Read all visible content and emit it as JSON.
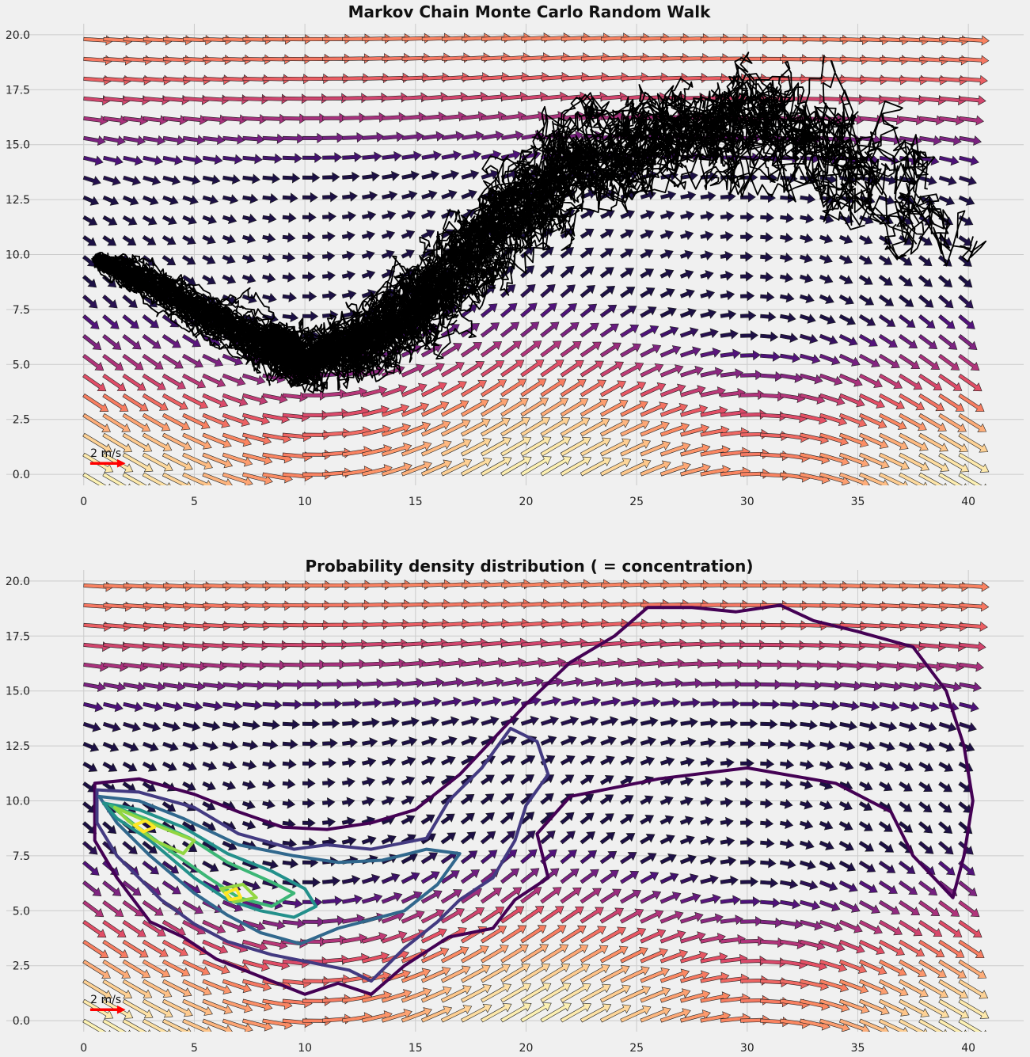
{
  "colors": {
    "background": "#f0f0f0",
    "grid": "#cbcbcb",
    "trajectory": "#000000",
    "quiver_key": "#ff0000",
    "quiver_cmap": [
      "#1c1044",
      "#4f127b",
      "#812581",
      "#b5367a",
      "#e55064",
      "#fb8761",
      "#fec287",
      "#fcfdbf"
    ],
    "contour_cmap": [
      "#440154",
      "#46337e",
      "#365c8d",
      "#277f8e",
      "#1fa187",
      "#4ac16d",
      "#a0da39",
      "#fde725"
    ]
  },
  "chart_data": [
    {
      "type": "quiver+line",
      "title": "Markov Chain Monte Carlo Random Walk",
      "xlabel": "",
      "ylabel": "",
      "xlim": [
        -3.5,
        42.5
      ],
      "ylim": [
        -0.5,
        20.5
      ],
      "xticks": [
        0,
        5,
        10,
        15,
        20,
        25,
        30,
        35,
        40
      ],
      "yticks": [
        0.0,
        2.5,
        5.0,
        7.5,
        10.0,
        12.5,
        15.0,
        17.5,
        20.0
      ],
      "xtick_labels": [
        "0",
        "5",
        "10",
        "15",
        "20",
        "25",
        "30",
        "35",
        "40"
      ],
      "ytick_labels": [
        "0.0",
        "2.5",
        "5.0",
        "7.5",
        "10.0",
        "12.5",
        "15.0",
        "17.5",
        "20.0"
      ],
      "grid": true,
      "quiver": {
        "x_range": [
          0,
          40
        ],
        "y_range": [
          0,
          20
        ],
        "spacing": 0.9,
        "speed_range_m_s": [
          1.0,
          2.0
        ],
        "key_label": "2 m/s",
        "key_value": 2,
        "key_position": [
          0.3,
          0.5
        ]
      },
      "random_walk": {
        "n_walkers": 60,
        "start": [
          0.5,
          9.8
        ],
        "path_centerline": [
          [
            0.5,
            9.8
          ],
          [
            4,
            8.2
          ],
          [
            8,
            6.0
          ],
          [
            10,
            5.2
          ],
          [
            13,
            6.2
          ],
          [
            16,
            8.5
          ],
          [
            19,
            11.5
          ],
          [
            22,
            14.0
          ],
          [
            26,
            15.5
          ],
          [
            30,
            16.0
          ],
          [
            34,
            14.5
          ],
          [
            37,
            12.5
          ],
          [
            40,
            11.0
          ]
        ]
      }
    },
    {
      "type": "quiver+contour",
      "title": "Probability density distribution ( = concentration)",
      "xlabel": "",
      "ylabel": "",
      "xlim": [
        -3.5,
        42.5
      ],
      "ylim": [
        -0.5,
        20.5
      ],
      "xticks": [
        0,
        5,
        10,
        15,
        20,
        25,
        30,
        35,
        40
      ],
      "yticks": [
        0.0,
        2.5,
        5.0,
        7.5,
        10.0,
        12.5,
        15.0,
        17.5,
        20.0
      ],
      "xtick_labels": [
        "0",
        "5",
        "10",
        "15",
        "20",
        "25",
        "30",
        "35",
        "40"
      ],
      "ytick_labels": [
        "0.0",
        "2.5",
        "5.0",
        "7.5",
        "10.0",
        "12.5",
        "15.0",
        "17.5",
        "20.0"
      ],
      "grid": true,
      "quiver": {
        "x_range": [
          0,
          40
        ],
        "y_range": [
          0,
          20
        ],
        "spacing": 0.9,
        "speed_range_m_s": [
          1.0,
          2.0
        ],
        "key_label": "2 m/s",
        "key_value": 2,
        "key_position": [
          0.3,
          0.5
        ]
      },
      "contour_levels": [
        {
          "level": 1,
          "rings": [
            [
              [
                0.5,
                10.8
              ],
              [
                2.5,
                11
              ],
              [
                5,
                10.3
              ],
              [
                7,
                9.5
              ],
              [
                9,
                8.8
              ],
              [
                11,
                8.7
              ],
              [
                13,
                9
              ],
              [
                15,
                9.6
              ],
              [
                17,
                11.2
              ],
              [
                18.5,
                12.8
              ],
              [
                20,
                14.4
              ],
              [
                22,
                16.3
              ],
              [
                24,
                17.5
              ],
              [
                25.5,
                18.8
              ],
              [
                27.5,
                18.8
              ],
              [
                29.5,
                18.6
              ],
              [
                31.5,
                18.9
              ],
              [
                33,
                18.2
              ],
              [
                35,
                17.7
              ],
              [
                37.5,
                17
              ],
              [
                39,
                15
              ],
              [
                39.8,
                12.5
              ],
              [
                40.2,
                10
              ],
              [
                39.8,
                7.5
              ],
              [
                39.3,
                5.6
              ],
              [
                37.5,
                7.5
              ],
              [
                36.5,
                9.5
              ],
              [
                34,
                10.8
              ],
              [
                30,
                11.5
              ],
              [
                26,
                11
              ],
              [
                22,
                10.2
              ],
              [
                20.5,
                8.5
              ],
              [
                21,
                6.5
              ],
              [
                19.5,
                5.5
              ],
              [
                18.5,
                4.2
              ],
              [
                16.5,
                3.8
              ],
              [
                14.5,
                2.5
              ],
              [
                13,
                1.2
              ],
              [
                11.5,
                1.7
              ],
              [
                10,
                1.2
              ],
              [
                8,
                2.0
              ],
              [
                6,
                2.8
              ],
              [
                4.5,
                3.8
              ],
              [
                3,
                4.5
              ],
              [
                1.5,
                6.5
              ],
              [
                0.5,
                8.2
              ],
              [
                0.5,
                10.8
              ]
            ]
          ]
        },
        {
          "level": 2,
          "rings": [
            [
              [
                0.6,
                10.5
              ],
              [
                2.5,
                10.4
              ],
              [
                5,
                9.7
              ],
              [
                7,
                8.5
              ],
              [
                9.5,
                7.8
              ],
              [
                11,
                8.0
              ],
              [
                13,
                7.8
              ],
              [
                15.5,
                8.3
              ],
              [
                16.5,
                10
              ],
              [
                18,
                11.5
              ],
              [
                19.3,
                13.3
              ],
              [
                20.5,
                12.7
              ],
              [
                21,
                11.2
              ],
              [
                20,
                9.8
              ],
              [
                19.5,
                8.2
              ],
              [
                18.5,
                6.5
              ],
              [
                17,
                5.5
              ],
              [
                16,
                4.5
              ],
              [
                14.5,
                3.3
              ],
              [
                13,
                1.8
              ],
              [
                12,
                2.3
              ],
              [
                10.5,
                2.6
              ],
              [
                8.5,
                3.0
              ],
              [
                6.5,
                3.6
              ],
              [
                5,
                4.4
              ],
              [
                3.5,
                5.5
              ],
              [
                1.5,
                7.5
              ],
              [
                0.6,
                9.0
              ],
              [
                0.6,
                10.5
              ]
            ]
          ]
        },
        {
          "level": 3,
          "rings": [
            [
              [
                0.7,
                10.2
              ],
              [
                2.5,
                10.0
              ],
              [
                4.5,
                9.2
              ],
              [
                7,
                8.0
              ],
              [
                9.5,
                7.5
              ],
              [
                11.5,
                7.2
              ],
              [
                13.5,
                7.3
              ],
              [
                15.5,
                7.8
              ],
              [
                17,
                7.6
              ],
              [
                16,
                6.2
              ],
              [
                14.5,
                5.0
              ],
              [
                13,
                4.6
              ],
              [
                11.5,
                4.2
              ],
              [
                9.8,
                3.5
              ],
              [
                8,
                4.0
              ],
              [
                6.5,
                4.8
              ],
              [
                5,
                5.8
              ],
              [
                3,
                7.5
              ],
              [
                1.5,
                9.0
              ],
              [
                0.7,
                10.2
              ]
            ]
          ]
        },
        {
          "level": 4,
          "rings": [
            [
              [
                0.9,
                9.9
              ],
              [
                2.5,
                9.6
              ],
              [
                4.5,
                8.8
              ],
              [
                6.5,
                7.6
              ],
              [
                8.5,
                6.8
              ],
              [
                10,
                6.0
              ],
              [
                10.5,
                5.2
              ],
              [
                9.5,
                4.7
              ],
              [
                8,
                5.0
              ],
              [
                6.5,
                5.5
              ],
              [
                5,
                6.5
              ],
              [
                3,
                8.2
              ],
              [
                1.5,
                9.2
              ],
              [
                0.9,
                9.9
              ]
            ]
          ]
        },
        {
          "level": 5,
          "rings": [
            [
              [
                1.2,
                9.8
              ],
              [
                2.8,
                9.2
              ],
              [
                4.8,
                8.3
              ],
              [
                6.5,
                7.2
              ],
              [
                8.5,
                6.3
              ],
              [
                9.5,
                5.8
              ],
              [
                8.5,
                5.2
              ],
              [
                7,
                5.6
              ],
              [
                5.5,
                6.6
              ],
              [
                3.8,
                7.8
              ],
              [
                2.2,
                9.0
              ],
              [
                1.2,
                9.8
              ]
            ]
          ]
        },
        {
          "level": 6,
          "rings": [
            [
              [
                1.4,
                9.7
              ],
              [
                3,
                9.0
              ],
              [
                5,
                8.2
              ],
              [
                4.5,
                7.6
              ],
              [
                3.2,
                8.2
              ],
              [
                2,
                9.1
              ],
              [
                1.4,
                9.7
              ]
            ],
            [
              [
                6.2,
                6.0
              ],
              [
                7.2,
                6.2
              ],
              [
                7.8,
                5.6
              ],
              [
                6.8,
                5.4
              ],
              [
                6.2,
                6.0
              ]
            ]
          ]
        },
        {
          "level": 7,
          "rings": [
            [
              [
                2.3,
                8.9
              ],
              [
                2.8,
                9.1
              ],
              [
                3.2,
                8.8
              ],
              [
                2.7,
                8.6
              ],
              [
                2.3,
                8.9
              ]
            ],
            [
              [
                6.4,
                5.8
              ],
              [
                6.9,
                6.0
              ],
              [
                7.1,
                5.6
              ],
              [
                6.6,
                5.5
              ],
              [
                6.4,
                5.8
              ]
            ]
          ]
        }
      ]
    }
  ]
}
